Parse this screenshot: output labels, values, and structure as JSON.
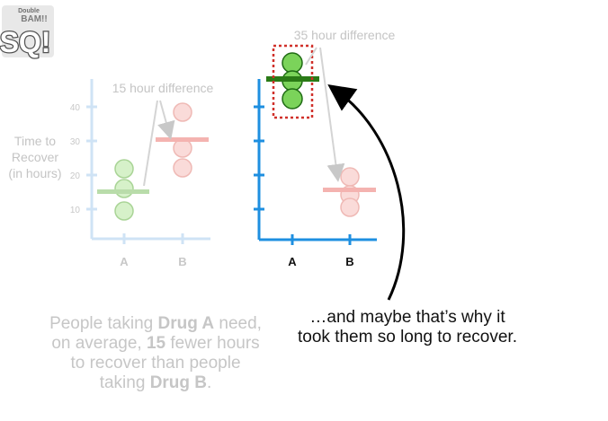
{
  "logo": {
    "top_text": "Double",
    "mid_text": "BAM!!",
    "letters": "SQ!"
  },
  "left_plot": {
    "ylabel_lines": [
      "Time to",
      "Recover",
      "(in hours)"
    ],
    "yticks": [
      "40",
      "30",
      "20",
      "10"
    ],
    "xticks": [
      "A",
      "B"
    ],
    "annotation": "15 hour difference"
  },
  "right_plot": {
    "xticks": [
      "A",
      "B"
    ],
    "annotation": "35 hour difference"
  },
  "caption_left": {
    "line1_pre": "People taking ",
    "line1_bold": "Drug A",
    "line1_post": " need,",
    "line2_pre": "on average, ",
    "line2_bold": "15",
    "line2_post": " fewer hours",
    "line3": "to recover than people",
    "line4_pre": "taking ",
    "line4_bold": "Drug B",
    "line4_post": "."
  },
  "caption_right": {
    "line1": "…and maybe that’s why it",
    "line2": "took them so long to recover."
  },
  "colors": {
    "faded_axis": "#cfe3f5",
    "axis": "#1e8fe0",
    "green_fill": "#7bd35a",
    "green_stroke": "#1f6b14",
    "green_bar": "#2a7a16",
    "red_faded": "#f4b3b0",
    "dashed_box": "#d0302a"
  }
}
